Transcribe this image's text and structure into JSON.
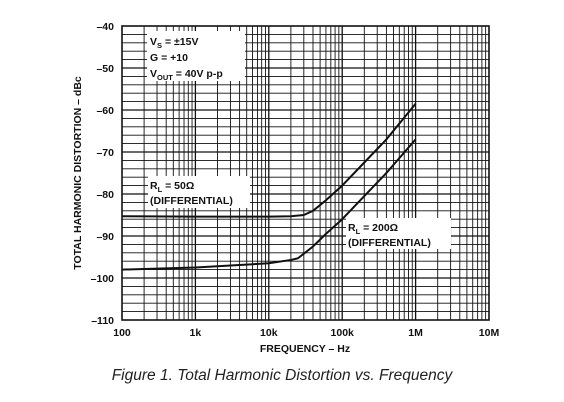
{
  "figure_caption": "Figure 1. Total Harmonic Distortion vs. Frequency",
  "conditions": {
    "vs": "V",
    "vs_sub": "S",
    "vs_val": " = ±15V",
    "gain": "G = +10",
    "vout": "V",
    "vout_sub": "OUT",
    "vout_val": " = 40V p-p"
  },
  "labels": {
    "r50_main": "R",
    "r50_sub": "L",
    "r50_val": " = 50Ω",
    "r50_note": "(DIFFERENTIAL)",
    "r200_main": "R",
    "r200_sub": "L",
    "r200_val": " = 200Ω",
    "r200_note": "(DIFFERENTIAL)"
  },
  "chart_data": {
    "type": "line",
    "xlabel": "FREQUENCY – Hz",
    "ylabel": "TOTAL HARMONIC DISTORTION – dBc",
    "x_scale": "log",
    "xlim": [
      100,
      10000000
    ],
    "ylim": [
      -110,
      -40
    ],
    "grid": true,
    "x_tick_labels": [
      "100",
      "1k",
      "10k",
      "100k",
      "1M",
      "10M"
    ],
    "y_tick_labels": [
      "–40",
      "–50",
      "–60",
      "–70",
      "–80",
      "–90",
      "–100",
      "–110"
    ],
    "series": [
      {
        "name": "RL = 50Ω (DIFFERENTIAL)",
        "x": [
          100,
          1000,
          10000,
          20000,
          30000,
          40000,
          60000,
          100000,
          200000,
          400000,
          1000000
        ],
        "y": [
          -85.3,
          -85.4,
          -85.4,
          -85.3,
          -85.0,
          -84.0,
          -81.5,
          -78.0,
          -72.5,
          -67.0,
          -58.5
        ]
      },
      {
        "name": "RL = 200Ω (DIFFERENTIAL)",
        "x": [
          100,
          1000,
          10000,
          20000,
          25000,
          40000,
          60000,
          100000,
          200000,
          400000,
          1000000
        ],
        "y": [
          -98.0,
          -97.5,
          -96.5,
          -95.7,
          -95.3,
          -92.5,
          -89.5,
          -86.0,
          -80.5,
          -75.0,
          -67.0
        ]
      }
    ]
  }
}
